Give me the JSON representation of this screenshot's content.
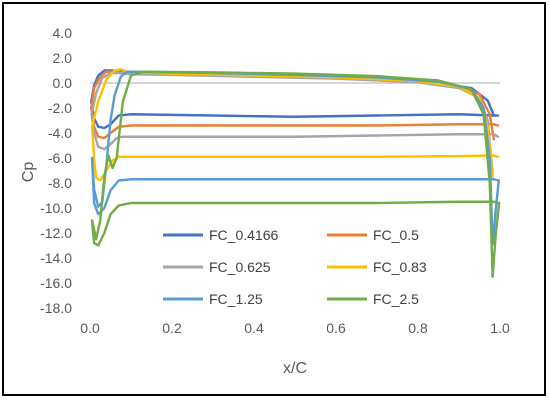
{
  "chart_data": {
    "type": "line",
    "title": "",
    "xlabel": "x/C",
    "ylabel": "Cp",
    "xlim": [
      0.0,
      1.0
    ],
    "ylim": [
      -18.0,
      4.0
    ],
    "x_ticks": [
      "0.0",
      "0.2",
      "0.4",
      "0.6",
      "0.8",
      "1.0"
    ],
    "y_ticks": [
      "4.0",
      "2.0",
      "0.0",
      "-2.0",
      "-4.0",
      "-6.0",
      "-8.0",
      "-10.0",
      "-12.0",
      "-14.0",
      "-16.0",
      "-18.0"
    ],
    "grid": false,
    "legend_position": "bottom-center",
    "series": [
      {
        "name": "FC_0.4166",
        "color": "#4472C4",
        "upper": [
          [
            0.003,
            -1.5
          ],
          [
            0.01,
            -0.2
          ],
          [
            0.02,
            0.6
          ],
          [
            0.035,
            1.0
          ],
          [
            0.055,
            1.0
          ],
          [
            0.08,
            0.9
          ],
          [
            0.15,
            0.8
          ],
          [
            0.3,
            0.65
          ],
          [
            0.5,
            0.5
          ],
          [
            0.7,
            0.3
          ],
          [
            0.85,
            0.0
          ],
          [
            0.93,
            -0.4
          ],
          [
            0.97,
            -1.4
          ],
          [
            0.985,
            -2.6
          ]
        ],
        "lower": [
          [
            0.003,
            -1.5
          ],
          [
            0.01,
            -2.8
          ],
          [
            0.02,
            -3.5
          ],
          [
            0.035,
            -3.6
          ],
          [
            0.05,
            -3.3
          ],
          [
            0.07,
            -2.6
          ],
          [
            0.1,
            -2.5
          ],
          [
            0.3,
            -2.6
          ],
          [
            0.5,
            -2.7
          ],
          [
            0.7,
            -2.6
          ],
          [
            0.9,
            -2.5
          ],
          [
            0.985,
            -2.6
          ],
          [
            0.995,
            -2.6
          ]
        ]
      },
      {
        "name": "FC_0.5",
        "color": "#ED7D31",
        "upper": [
          [
            0.003,
            -2.0
          ],
          [
            0.01,
            -0.4
          ],
          [
            0.025,
            0.5
          ],
          [
            0.04,
            0.9
          ],
          [
            0.06,
            0.9
          ],
          [
            0.09,
            0.8
          ],
          [
            0.2,
            0.7
          ],
          [
            0.4,
            0.55
          ],
          [
            0.6,
            0.4
          ],
          [
            0.8,
            0.1
          ],
          [
            0.9,
            -0.3
          ],
          [
            0.95,
            -0.9
          ],
          [
            0.975,
            -2.5
          ],
          [
            0.985,
            -4.5
          ]
        ],
        "lower": [
          [
            0.003,
            -2.0
          ],
          [
            0.01,
            -3.5
          ],
          [
            0.02,
            -4.3
          ],
          [
            0.035,
            -4.4
          ],
          [
            0.05,
            -4.0
          ],
          [
            0.07,
            -3.5
          ],
          [
            0.1,
            -3.4
          ],
          [
            0.3,
            -3.4
          ],
          [
            0.5,
            -3.4
          ],
          [
            0.7,
            -3.4
          ],
          [
            0.9,
            -3.3
          ],
          [
            0.985,
            -3.3
          ],
          [
            0.995,
            -3.4
          ]
        ]
      },
      {
        "name": "FC_0.625",
        "color": "#A5A5A5",
        "upper": [
          [
            0.004,
            -2.5
          ],
          [
            0.015,
            -0.8
          ],
          [
            0.03,
            0.4
          ],
          [
            0.05,
            0.8
          ],
          [
            0.07,
            0.8
          ],
          [
            0.1,
            0.7
          ],
          [
            0.2,
            0.65
          ],
          [
            0.4,
            0.5
          ],
          [
            0.6,
            0.35
          ],
          [
            0.8,
            0.05
          ],
          [
            0.9,
            -0.4
          ],
          [
            0.95,
            -1.2
          ],
          [
            0.97,
            -3.0
          ],
          [
            0.982,
            -7.2
          ]
        ],
        "lower": [
          [
            0.004,
            -2.5
          ],
          [
            0.01,
            -4.0
          ],
          [
            0.02,
            -5.1
          ],
          [
            0.035,
            -5.3
          ],
          [
            0.05,
            -4.9
          ],
          [
            0.065,
            -4.4
          ],
          [
            0.08,
            -4.3
          ],
          [
            0.3,
            -4.3
          ],
          [
            0.5,
            -4.3
          ],
          [
            0.7,
            -4.2
          ],
          [
            0.9,
            -4.1
          ],
          [
            0.985,
            -4.1
          ],
          [
            0.995,
            -4.3
          ]
        ]
      },
      {
        "name": "FC_0.83",
        "color": "#FFC000",
        "upper": [
          [
            0.005,
            -3.5
          ],
          [
            0.02,
            -1.5
          ],
          [
            0.04,
            0.3
          ],
          [
            0.06,
            1.0
          ],
          [
            0.075,
            1.1
          ],
          [
            0.09,
            0.9
          ],
          [
            0.2,
            0.75
          ],
          [
            0.4,
            0.6
          ],
          [
            0.6,
            0.45
          ],
          [
            0.8,
            0.15
          ],
          [
            0.9,
            -0.3
          ],
          [
            0.95,
            -1.2
          ],
          [
            0.97,
            -3.5
          ],
          [
            0.982,
            -7.5
          ]
        ],
        "lower": [
          [
            0.005,
            -3.5
          ],
          [
            0.01,
            -6.0
          ],
          [
            0.015,
            -7.6
          ],
          [
            0.025,
            -7.8
          ],
          [
            0.04,
            -7.0
          ],
          [
            0.055,
            -6.2
          ],
          [
            0.07,
            -5.9
          ],
          [
            0.3,
            -5.9
          ],
          [
            0.5,
            -5.9
          ],
          [
            0.7,
            -5.9
          ],
          [
            0.9,
            -5.85
          ],
          [
            0.985,
            -5.8
          ],
          [
            0.995,
            -5.9
          ]
        ]
      },
      {
        "name": "FC_1.25",
        "color": "#5B9BD5",
        "upper": [
          [
            0.005,
            -6.0
          ],
          [
            0.01,
            -8.5
          ],
          [
            0.02,
            -9.9
          ],
          [
            0.03,
            -9.5
          ],
          [
            0.04,
            -6.5
          ],
          [
            0.05,
            -3.0
          ],
          [
            0.06,
            -1.0
          ],
          [
            0.075,
            0.5
          ],
          [
            0.09,
            0.9
          ],
          [
            0.12,
            0.9
          ],
          [
            0.3,
            0.8
          ],
          [
            0.5,
            0.65
          ],
          [
            0.7,
            0.45
          ],
          [
            0.85,
            0.1
          ],
          [
            0.93,
            -0.5
          ],
          [
            0.96,
            -2.0
          ],
          [
            0.975,
            -6.0
          ],
          [
            0.982,
            -12.9
          ],
          [
            0.99,
            -10.0
          ],
          [
            0.997,
            -7.8
          ]
        ],
        "lower": [
          [
            0.005,
            -6.0
          ],
          [
            0.01,
            -9.6
          ],
          [
            0.02,
            -10.5
          ],
          [
            0.035,
            -10.0
          ],
          [
            0.05,
            -8.6
          ],
          [
            0.07,
            -7.8
          ],
          [
            0.1,
            -7.7
          ],
          [
            0.3,
            -7.7
          ],
          [
            0.5,
            -7.7
          ],
          [
            0.7,
            -7.7
          ],
          [
            0.9,
            -7.7
          ],
          [
            0.985,
            -7.7
          ],
          [
            0.997,
            -7.8
          ]
        ]
      },
      {
        "name": "FC_2.5",
        "color": "#70AD47",
        "upper": [
          [
            0.005,
            -11.0
          ],
          [
            0.015,
            -12.5
          ],
          [
            0.025,
            -11.0
          ],
          [
            0.035,
            -7.5
          ],
          [
            0.045,
            -5.8
          ],
          [
            0.055,
            -6.8
          ],
          [
            0.065,
            -6.0
          ],
          [
            0.08,
            -1.5
          ],
          [
            0.1,
            0.6
          ],
          [
            0.13,
            0.9
          ],
          [
            0.3,
            0.85
          ],
          [
            0.5,
            0.75
          ],
          [
            0.7,
            0.55
          ],
          [
            0.85,
            0.2
          ],
          [
            0.93,
            -0.5
          ],
          [
            0.96,
            -2.5
          ],
          [
            0.975,
            -8.0
          ],
          [
            0.982,
            -15.5
          ],
          [
            0.99,
            -12.0
          ],
          [
            0.998,
            -9.6
          ]
        ],
        "lower": [
          [
            0.005,
            -11.0
          ],
          [
            0.01,
            -12.8
          ],
          [
            0.02,
            -13.0
          ],
          [
            0.035,
            -12.0
          ],
          [
            0.05,
            -10.5
          ],
          [
            0.07,
            -9.8
          ],
          [
            0.1,
            -9.6
          ],
          [
            0.3,
            -9.6
          ],
          [
            0.5,
            -9.6
          ],
          [
            0.7,
            -9.6
          ],
          [
            0.9,
            -9.5
          ],
          [
            0.985,
            -9.5
          ],
          [
            0.998,
            -9.6
          ]
        ]
      }
    ]
  }
}
